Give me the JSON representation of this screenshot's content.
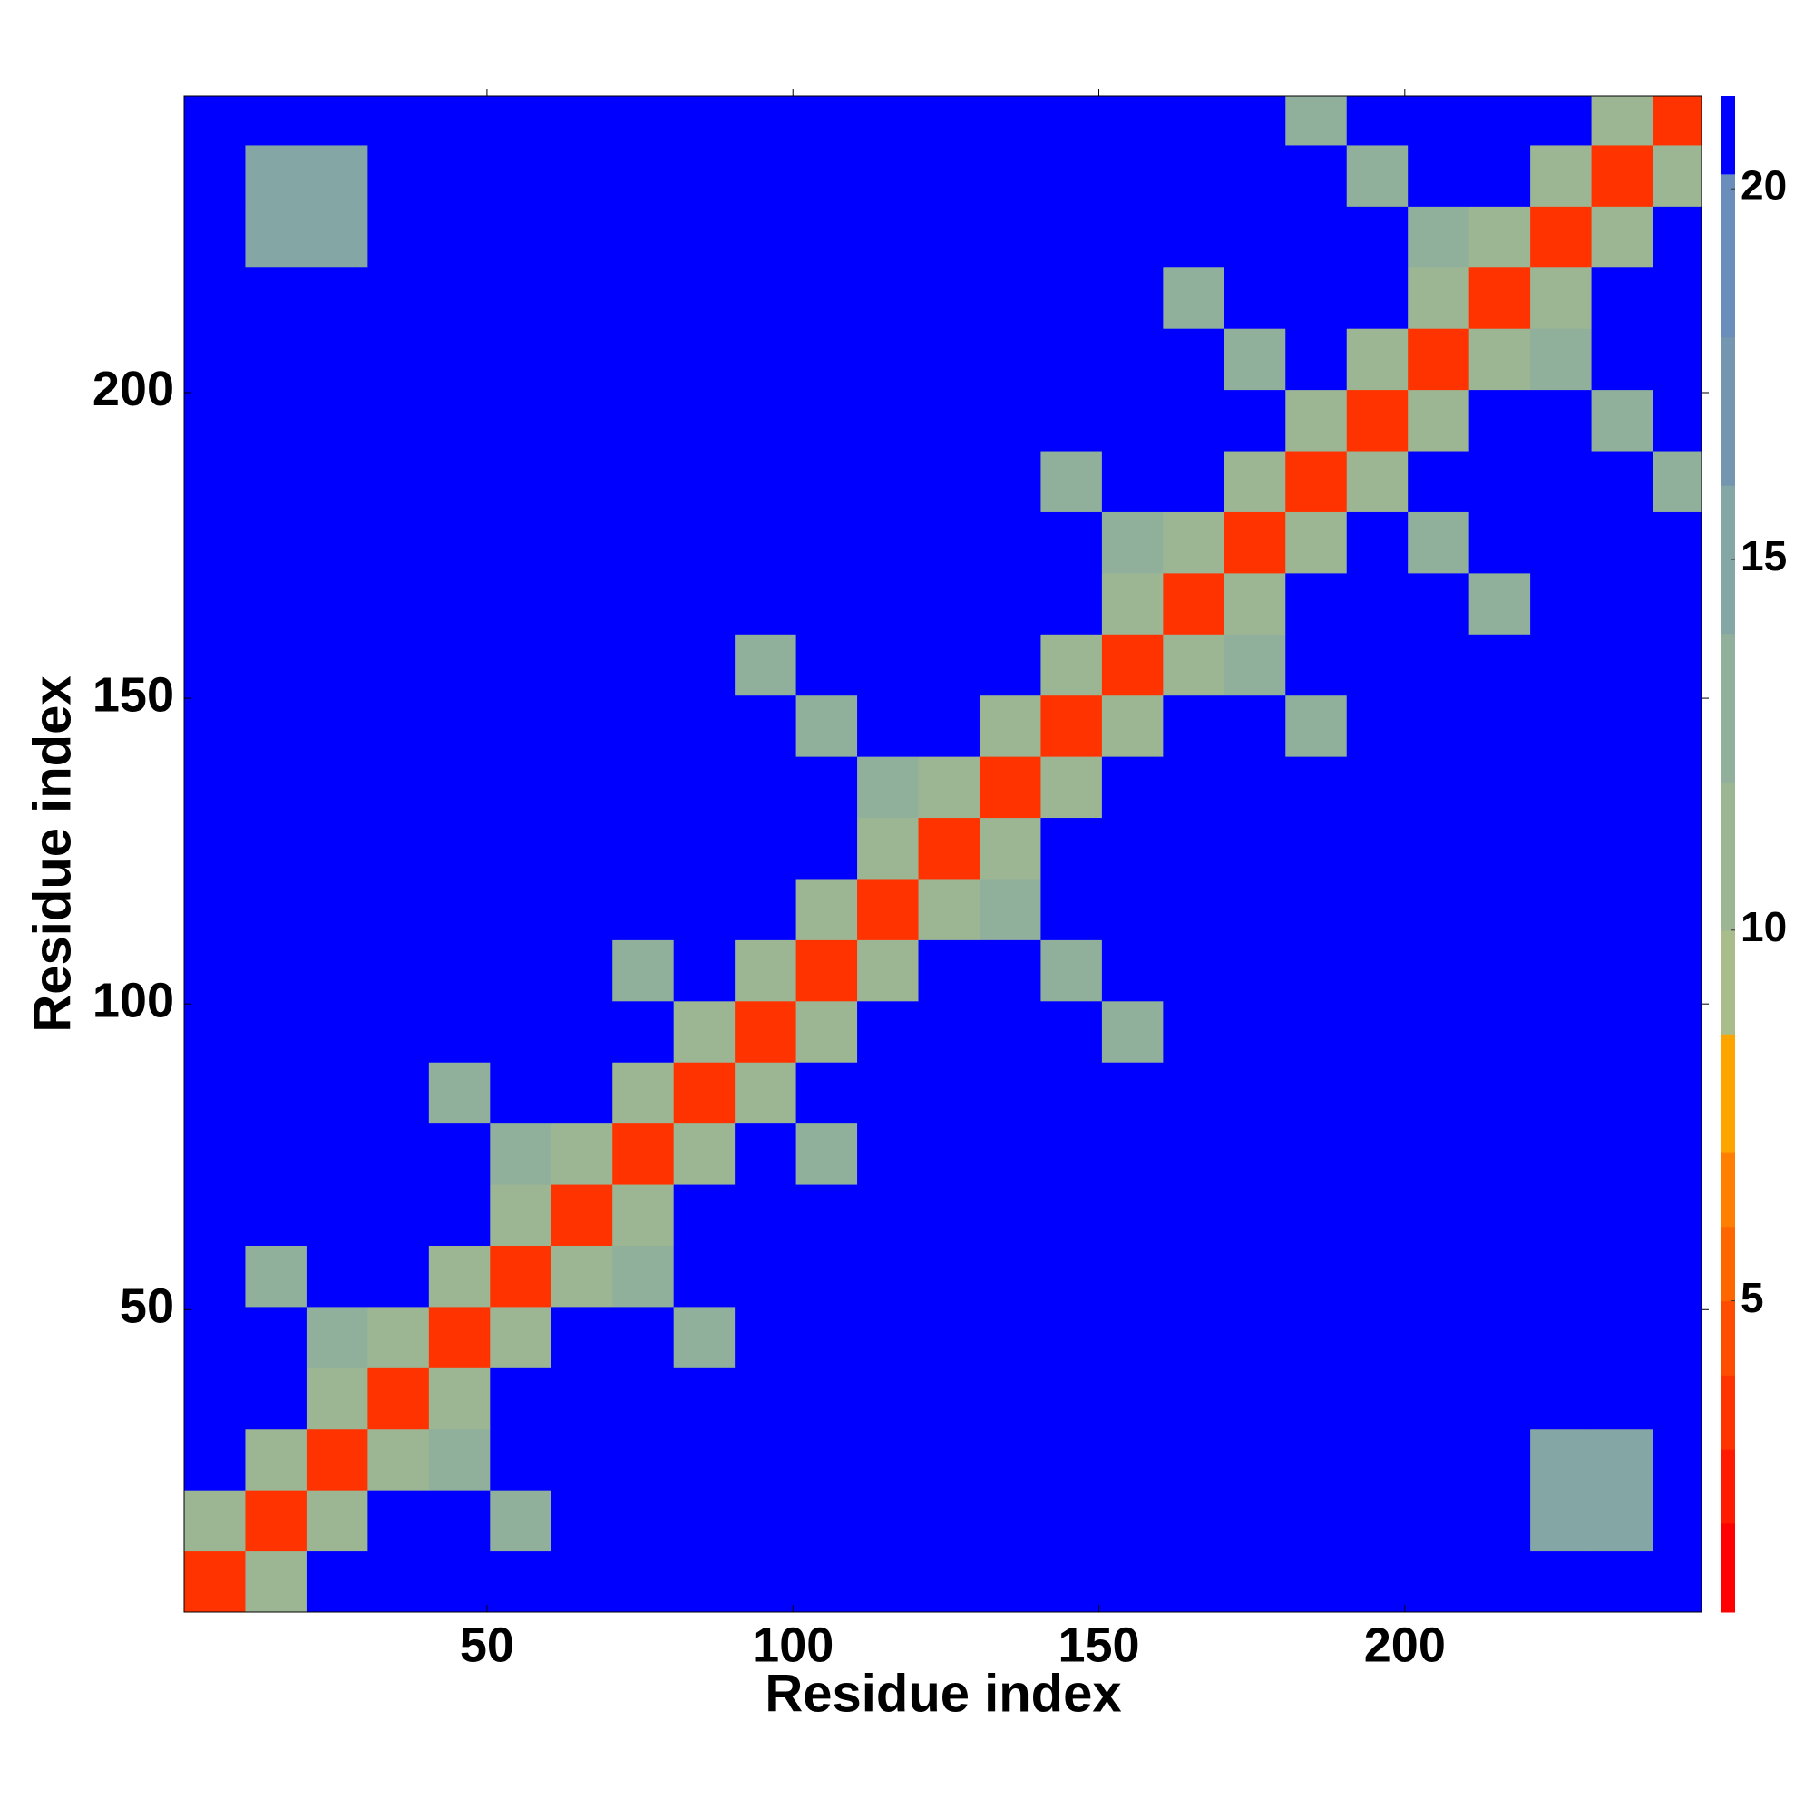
{
  "chart_data": {
    "type": "heatmap",
    "x_label": "Residue index",
    "y_label": "Residue index",
    "xlim": [
      0.5,
      248.5
    ],
    "ylim": [
      0.5,
      248.5
    ],
    "xticks": [
      50,
      100,
      150,
      200
    ],
    "yticks": [
      50,
      100,
      150,
      200
    ],
    "xbins": [
      0.5,
      10.5,
      20.5,
      30.5,
      40.5,
      50.5,
      60.5,
      70.5,
      80.5,
      90.5,
      100.5,
      110.5,
      120.5,
      130.5,
      140.5,
      150.5,
      160.5,
      170.5,
      180.5,
      190.5,
      200.5,
      210.5,
      220.5,
      230.5,
      240.5,
      248.5
    ],
    "ybins": [
      0.5,
      10.5,
      20.5,
      30.5,
      40.5,
      50.5,
      60.5,
      70.5,
      80.5,
      90.5,
      100.5,
      110.5,
      120.5,
      130.5,
      140.5,
      150.5,
      160.5,
      170.5,
      180.5,
      190.5,
      200.5,
      210.5,
      220.5,
      230.5,
      240.5,
      248.5
    ],
    "z": [
      [
        3,
        11,
        21,
        21,
        21,
        21,
        21,
        21,
        21,
        21,
        21,
        21,
        21,
        21,
        21,
        21,
        21,
        21,
        21,
        21,
        21,
        21,
        21,
        21,
        21
      ],
      [
        11,
        3,
        11,
        21,
        21,
        12,
        21,
        21,
        21,
        21,
        21,
        21,
        21,
        21,
        21,
        21,
        21,
        21,
        21,
        21,
        21,
        21,
        15,
        15,
        21
      ],
      [
        21,
        11,
        3,
        11,
        12,
        21,
        21,
        21,
        21,
        21,
        21,
        21,
        21,
        21,
        21,
        21,
        21,
        21,
        21,
        21,
        21,
        21,
        15,
        15,
        21
      ],
      [
        21,
        21,
        11,
        3,
        11,
        21,
        21,
        21,
        21,
        21,
        21,
        21,
        21,
        21,
        21,
        21,
        21,
        21,
        21,
        21,
        21,
        21,
        21,
        21,
        21
      ],
      [
        21,
        21,
        12,
        11,
        3,
        11,
        21,
        21,
        12,
        21,
        21,
        21,
        21,
        21,
        21,
        21,
        21,
        21,
        21,
        21,
        21,
        21,
        21,
        21,
        21
      ],
      [
        21,
        12,
        21,
        21,
        11,
        3,
        11,
        12,
        21,
        21,
        21,
        21,
        21,
        21,
        21,
        21,
        21,
        21,
        21,
        21,
        21,
        21,
        21,
        21,
        21
      ],
      [
        21,
        21,
        21,
        21,
        21,
        11,
        3,
        11,
        21,
        21,
        21,
        21,
        21,
        21,
        21,
        21,
        21,
        21,
        21,
        21,
        21,
        21,
        21,
        21,
        21
      ],
      [
        21,
        21,
        21,
        21,
        21,
        12,
        11,
        3,
        11,
        21,
        12,
        21,
        21,
        21,
        21,
        21,
        21,
        21,
        21,
        21,
        21,
        21,
        21,
        21,
        21
      ],
      [
        21,
        21,
        21,
        21,
        12,
        21,
        21,
        11,
        3,
        11,
        21,
        21,
        21,
        21,
        21,
        21,
        21,
        21,
        21,
        21,
        21,
        21,
        21,
        21,
        21
      ],
      [
        21,
        21,
        21,
        21,
        21,
        21,
        21,
        21,
        11,
        3,
        11,
        21,
        21,
        21,
        21,
        12,
        21,
        21,
        21,
        21,
        21,
        21,
        21,
        21,
        21
      ],
      [
        21,
        21,
        21,
        21,
        21,
        21,
        21,
        12,
        21,
        11,
        3,
        11,
        21,
        21,
        12,
        21,
        21,
        21,
        21,
        21,
        21,
        21,
        21,
        21,
        21
      ],
      [
        21,
        21,
        21,
        21,
        21,
        21,
        21,
        21,
        21,
        21,
        11,
        3,
        11,
        12,
        21,
        21,
        21,
        21,
        21,
        21,
        21,
        21,
        21,
        21,
        21
      ],
      [
        21,
        21,
        21,
        21,
        21,
        21,
        21,
        21,
        21,
        21,
        21,
        11,
        3,
        11,
        21,
        21,
        21,
        21,
        21,
        21,
        21,
        21,
        21,
        21,
        21
      ],
      [
        21,
        21,
        21,
        21,
        21,
        21,
        21,
        21,
        21,
        21,
        21,
        12,
        11,
        3,
        11,
        21,
        21,
        21,
        21,
        21,
        21,
        21,
        21,
        21,
        21
      ],
      [
        21,
        21,
        21,
        21,
        21,
        21,
        21,
        21,
        21,
        21,
        12,
        21,
        21,
        11,
        3,
        11,
        21,
        21,
        12,
        21,
        21,
        21,
        21,
        21,
        21
      ],
      [
        21,
        21,
        21,
        21,
        21,
        21,
        21,
        21,
        21,
        12,
        21,
        21,
        21,
        21,
        11,
        3,
        11,
        12,
        21,
        21,
        21,
        21,
        21,
        21,
        21
      ],
      [
        21,
        21,
        21,
        21,
        21,
        21,
        21,
        21,
        21,
        21,
        21,
        21,
        21,
        21,
        21,
        11,
        3,
        11,
        21,
        21,
        21,
        12,
        21,
        21,
        21
      ],
      [
        21,
        21,
        21,
        21,
        21,
        21,
        21,
        21,
        21,
        21,
        21,
        21,
        21,
        21,
        21,
        12,
        11,
        3,
        11,
        21,
        12,
        21,
        21,
        21,
        21
      ],
      [
        21,
        21,
        21,
        21,
        21,
        21,
        21,
        21,
        21,
        21,
        21,
        21,
        21,
        21,
        12,
        21,
        21,
        11,
        3,
        11,
        21,
        21,
        21,
        21,
        12
      ],
      [
        21,
        21,
        21,
        21,
        21,
        21,
        21,
        21,
        21,
        21,
        21,
        21,
        21,
        21,
        21,
        21,
        21,
        21,
        11,
        3,
        11,
        21,
        21,
        12,
        21
      ],
      [
        21,
        21,
        21,
        21,
        21,
        21,
        21,
        21,
        21,
        21,
        21,
        21,
        21,
        21,
        21,
        21,
        21,
        12,
        21,
        11,
        3,
        11,
        12,
        21,
        21
      ],
      [
        21,
        21,
        21,
        21,
        21,
        21,
        21,
        21,
        21,
        21,
        21,
        21,
        21,
        21,
        21,
        21,
        12,
        21,
        21,
        21,
        11,
        3,
        11,
        21,
        21
      ],
      [
        21,
        15,
        15,
        21,
        21,
        21,
        21,
        21,
        21,
        21,
        21,
        21,
        21,
        21,
        21,
        21,
        21,
        21,
        21,
        21,
        12,
        11,
        3,
        11,
        21
      ],
      [
        21,
        15,
        15,
        21,
        21,
        21,
        21,
        21,
        21,
        21,
        21,
        21,
        21,
        21,
        21,
        21,
        21,
        21,
        21,
        12,
        21,
        21,
        11,
        3,
        11
      ],
      [
        21,
        21,
        21,
        21,
        21,
        21,
        21,
        21,
        21,
        21,
        21,
        21,
        21,
        21,
        21,
        21,
        21,
        21,
        12,
        21,
        21,
        21,
        21,
        11,
        3
      ]
    ],
    "colorbar": {
      "lim": [
        0.8,
        21.25
      ],
      "ticks": [
        5,
        10,
        15,
        20
      ],
      "bounds": [
        0.8,
        2,
        3,
        4,
        5,
        6,
        7,
        8.6,
        10,
        12,
        14,
        16,
        18,
        20.2,
        21.25
      ],
      "colors": [
        "#ff0000",
        "#ff1a00",
        "#ff3300",
        "#ff4d00",
        "#ff6600",
        "#ff8000",
        "#ffa500",
        "#a8bc8c",
        "#9cb694",
        "#90b09c",
        "#84a6a4",
        "#7496b0",
        "#6a8ebc",
        "#0000ff"
      ]
    }
  }
}
